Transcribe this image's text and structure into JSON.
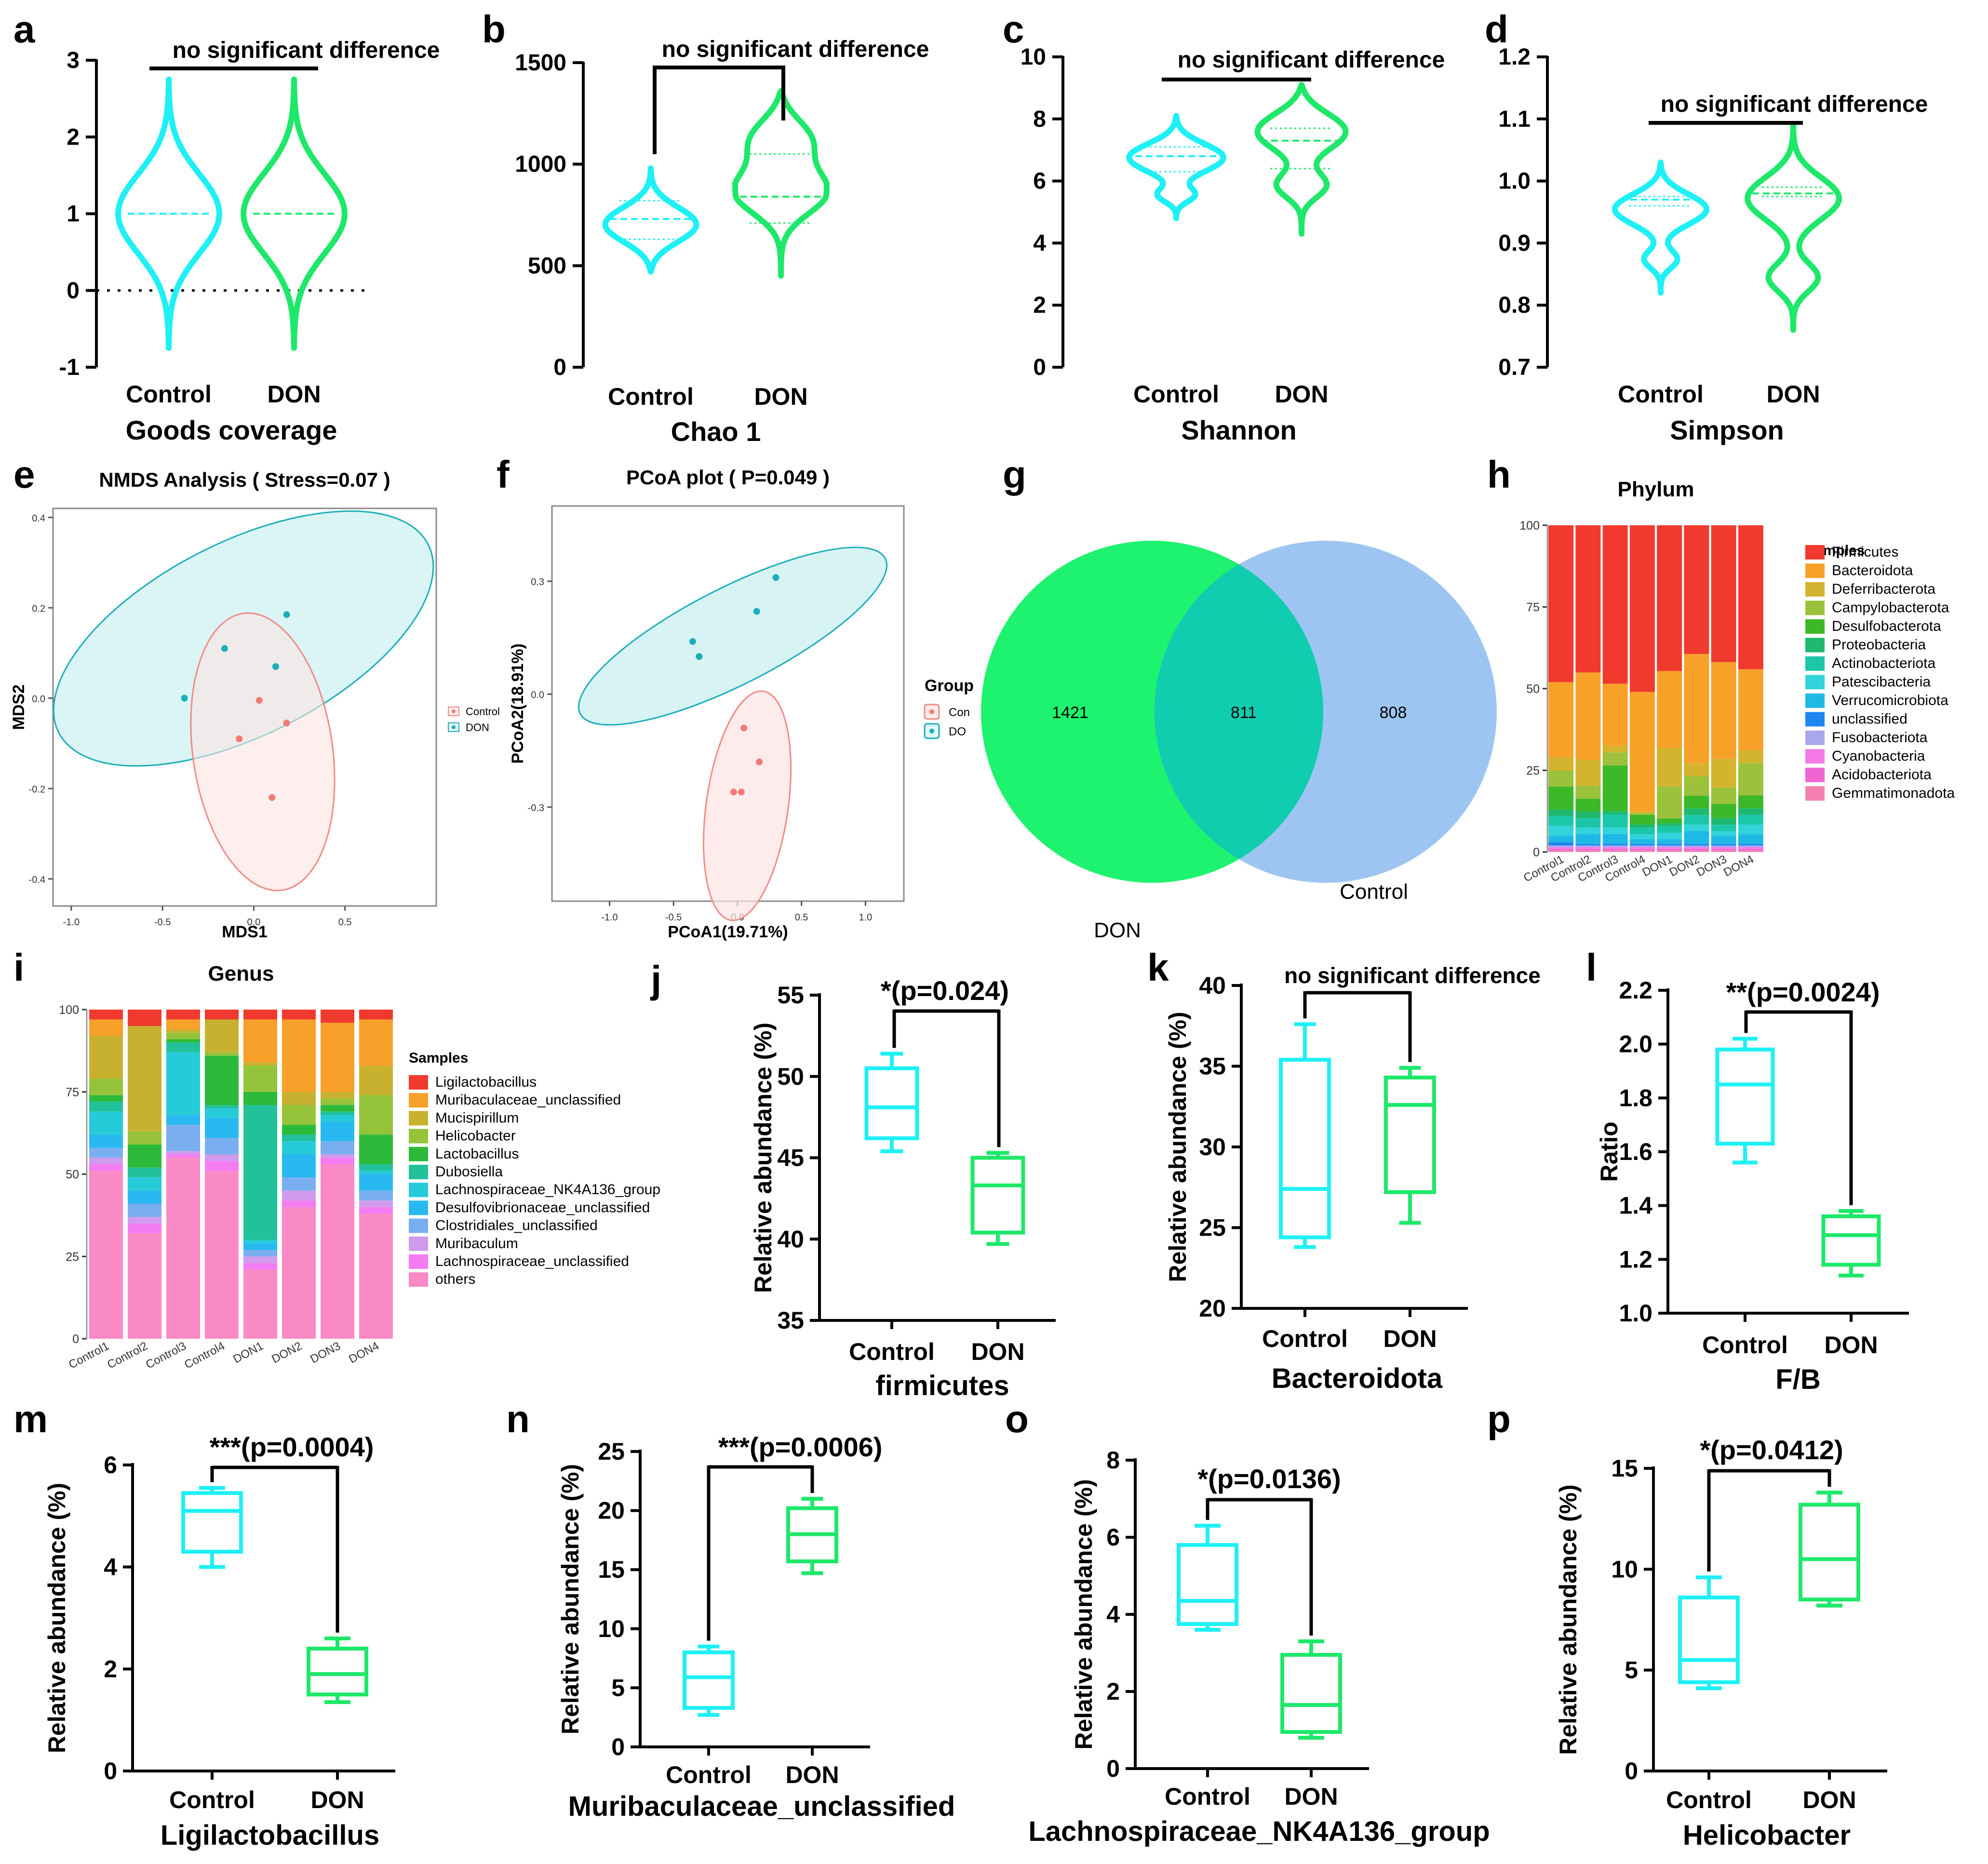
{
  "colors": {
    "control": "#1EF0F5",
    "don": "#1EE86A",
    "control_pale": "#DDF6F7",
    "don_pale": "#FCE6E4",
    "venn_don": "#1DF36E",
    "venn_control": "#9EC5F2",
    "venn_overlap": "#10CDB0"
  },
  "chart_data": [
    {
      "id": "a",
      "type": "violin",
      "title": "Goods coverage",
      "categories": [
        "Control",
        "DON"
      ],
      "ylim": [
        -1,
        3
      ],
      "yticks": [
        "3",
        "2",
        "1",
        "0",
        "-1"
      ],
      "range": [
        [
          -0.75,
          2.75
        ],
        [
          -0.75,
          2.75
        ]
      ],
      "medians": [
        1.0,
        1.0
      ],
      "zero_line": true,
      "annotation": "no significant difference"
    },
    {
      "id": "b",
      "type": "violin",
      "title": "Chao 1",
      "categories": [
        "Control",
        "DON"
      ],
      "ylim": [
        0,
        1500
      ],
      "yticks": [
        "1500",
        "1000",
        "500",
        "0"
      ],
      "range": [
        [
          470,
          980
        ],
        [
          450,
          1360
        ]
      ],
      "medians": [
        730,
        840
      ],
      "quartiles": [
        [
          630,
          820
        ],
        [
          710,
          1050
        ]
      ],
      "annotation": "no significant difference"
    },
    {
      "id": "c",
      "type": "violin",
      "title": "Shannon",
      "categories": [
        "Control",
        "DON"
      ],
      "ylim": [
        0,
        10
      ],
      "yticks": [
        "10",
        "8",
        "6",
        "4",
        "2",
        "0"
      ],
      "range": [
        [
          4.8,
          8.1
        ],
        [
          4.3,
          9.1
        ]
      ],
      "medians": [
        6.8,
        7.3
      ],
      "quartiles": [
        [
          6.3,
          7.1
        ],
        [
          6.4,
          7.7
        ]
      ],
      "annotation": "no significant difference"
    },
    {
      "id": "d",
      "type": "violin",
      "title": "Simpson",
      "categories": [
        "Control",
        "DON"
      ],
      "ylim": [
        0.7,
        1.2
      ],
      "yticks": [
        "1.2",
        "1.1",
        "1.0",
        "0.9",
        "0.8",
        "0.7"
      ],
      "range": [
        [
          0.82,
          1.03
        ],
        [
          0.76,
          1.09
        ]
      ],
      "medians": [
        0.97,
        0.98
      ],
      "quartiles": [
        [
          0.96,
          0.975
        ],
        [
          0.975,
          0.99
        ]
      ],
      "annotation": "no significant difference"
    },
    {
      "id": "e",
      "type": "scatter",
      "title": "NMDS Analysis ( Stress=0.07 )",
      "xlabel": "MDS1",
      "ylabel": "MDS2",
      "xlim": [
        -1.1,
        1.0
      ],
      "ylim": [
        -0.46,
        0.42
      ],
      "xticks": [
        -1.0,
        -0.5,
        0.0,
        0.5
      ],
      "yticks": [
        -0.4,
        -0.2,
        0.0,
        0.2,
        0.4
      ],
      "legend": [
        "Control",
        "DON"
      ],
      "series": [
        {
          "name": "Control",
          "points": [
            [
              0.03,
              -0.005
            ],
            [
              0.18,
              -0.055
            ],
            [
              -0.08,
              -0.09
            ],
            [
              0.1,
              -0.22
            ]
          ]
        },
        {
          "name": "DON",
          "points": [
            [
              -0.38,
              0.0
            ],
            [
              -0.16,
              0.11
            ],
            [
              0.12,
              0.07
            ],
            [
              0.18,
              0.185
            ]
          ]
        }
      ]
    },
    {
      "id": "f",
      "type": "scatter",
      "title": "PCoA plot ( P=0.049 )",
      "xlabel": "PCoA1(19.71%)",
      "ylabel": "PCoA2(18.91%)",
      "xlim": [
        -1.45,
        1.3
      ],
      "ylim": [
        -0.55,
        0.5
      ],
      "xticks": [
        -1.0,
        -0.5,
        0.0,
        0.5,
        1.0
      ],
      "yticks": [
        -0.3,
        0.0,
        0.3
      ],
      "legend_title": "Group",
      "legend": [
        "Con",
        "DO"
      ],
      "series": [
        {
          "name": "Control",
          "points": [
            [
              0.05,
              -0.09
            ],
            [
              0.17,
              -0.18
            ],
            [
              -0.03,
              -0.26
            ],
            [
              0.03,
              -0.26
            ]
          ]
        },
        {
          "name": "DON",
          "points": [
            [
              0.3,
              0.31
            ],
            [
              0.15,
              0.22
            ],
            [
              -0.35,
              0.14
            ],
            [
              -0.3,
              0.1
            ]
          ]
        }
      ]
    },
    {
      "id": "g",
      "type": "venn",
      "sets": [
        "DON",
        "Control"
      ],
      "only_don": "1421",
      "shared": "811",
      "only_control": "808"
    },
    {
      "id": "h",
      "type": "stacked_bar",
      "title": "Phylum",
      "legend_title": "Samples",
      "categories": [
        "Control1",
        "Control2",
        "Control3",
        "Control4",
        "DON1",
        "DON2",
        "DON3",
        "DON4"
      ],
      "yticks": [
        "100",
        "75",
        "50",
        "25",
        "0"
      ],
      "series": [
        {
          "name": "Firmicutes",
          "color": "#F03A2E",
          "values": [
            48,
            45.5,
            48.5,
            51.5,
            45.5,
            40,
            42.5,
            44.5
          ]
        },
        {
          "name": "Bacteroidota",
          "color": "#F7A129",
          "values": [
            23,
            27,
            19,
            37,
            24,
            34,
            30,
            25
          ]
        },
        {
          "name": "Deferribacterota",
          "color": "#D4B42E",
          "values": [
            4,
            8,
            2,
            0.5,
            12,
            4,
            9,
            4
          ]
        },
        {
          "name": "Campylobacterota",
          "color": "#9CC13A",
          "values": [
            5,
            4,
            4,
            0.5,
            10,
            6,
            5,
            10
          ]
        },
        {
          "name": "Desulfobacterota",
          "color": "#3DB829",
          "values": [
            7,
            4,
            14,
            3,
            1.5,
            4,
            4.5,
            4
          ]
        },
        {
          "name": "Proteobacteria",
          "color": "#1EB96F",
          "values": [
            2,
            2,
            1,
            1,
            1,
            2,
            2,
            2
          ]
        },
        {
          "name": "Actinobacteriota",
          "color": "#1CC7A9",
          "values": [
            3,
            3,
            4,
            2,
            2,
            3,
            2,
            3
          ]
        },
        {
          "name": "Patescibacteria",
          "color": "#32D4DB",
          "values": [
            3,
            2,
            2,
            1.5,
            2,
            2,
            1.5,
            3
          ]
        },
        {
          "name": "Verrucomicrobiota",
          "color": "#20B9E6",
          "values": [
            2,
            3,
            3,
            1.5,
            1.5,
            4,
            2.5,
            3
          ]
        },
        {
          "name": "unclassified",
          "color": "#1E86F0",
          "values": [
            1,
            0.5,
            0.5,
            0.5,
            0.5,
            0.5,
            0.5,
            0.5
          ]
        },
        {
          "name": "Fusobacteriota",
          "color": "#A9A7EE",
          "values": [
            0.5,
            0.5,
            0.5,
            0.5,
            0.5,
            0.5,
            0.5,
            0.5
          ]
        },
        {
          "name": "Cyanobacteria",
          "color": "#F27BE8",
          "values": [
            0.5,
            0.5,
            0.5,
            0.5,
            0.5,
            0.5,
            0.5,
            0.5
          ]
        },
        {
          "name": "Acidobacteriota",
          "color": "#F064D2",
          "values": [
            0.5,
            0.5,
            0.5,
            0.5,
            0.5,
            0.5,
            0.5,
            0.5
          ]
        },
        {
          "name": "Gemmatimonadota",
          "color": "#F581B0",
          "values": [
            0.5,
            0.5,
            0.5,
            0.5,
            0.5,
            0.5,
            0.5,
            0.5
          ]
        }
      ]
    },
    {
      "id": "i",
      "type": "stacked_bar",
      "title": "Genus",
      "legend_title": "Samples",
      "categories": [
        "Control1",
        "Control2",
        "Control3",
        "Control4",
        "DON1",
        "DON2",
        "DON3",
        "DON4"
      ],
      "yticks": [
        "100",
        "75",
        "50",
        "25",
        "0"
      ],
      "series": [
        {
          "name": "others",
          "color": "#F98AC6",
          "values": [
            51,
            32,
            55,
            51,
            21,
            40,
            53,
            38
          ]
        },
        {
          "name": "Lachnospiraceae_unclassified",
          "color": "#F47CF2",
          "values": [
            2,
            3,
            1,
            3,
            2,
            2,
            2,
            2
          ]
        },
        {
          "name": "Muribaculum",
          "color": "#D09BEC",
          "values": [
            2,
            2,
            1,
            2,
            2,
            3,
            1,
            2
          ]
        },
        {
          "name": "Clostridiales_unclassified",
          "color": "#79AFF0",
          "values": [
            3,
            4,
            8,
            5,
            2,
            4,
            4,
            3
          ]
        },
        {
          "name": "Desulfovibrionaceae_unclassified",
          "color": "#28B9F0",
          "values": [
            4,
            4,
            3,
            6,
            2,
            7,
            6,
            5
          ]
        },
        {
          "name": "Lachnospiraceae_NK4A136_group",
          "color": "#26CBDA",
          "values": [
            7,
            4,
            19,
            3,
            1,
            4,
            2,
            1
          ]
        },
        {
          "name": "Dubosiella",
          "color": "#21C19C",
          "values": [
            3,
            3,
            3,
            1,
            41,
            2,
            1,
            2
          ]
        },
        {
          "name": "Lactobacillus",
          "color": "#2DBA3A",
          "values": [
            2,
            7,
            1,
            15,
            4,
            3,
            2,
            9
          ]
        },
        {
          "name": "Helicobacter",
          "color": "#95C33A",
          "values": [
            5,
            4,
            2,
            1,
            8,
            6,
            2,
            12
          ]
        },
        {
          "name": "Mucispirillum",
          "color": "#C8B12E",
          "values": [
            13,
            32,
            1,
            10,
            1,
            4,
            2,
            9
          ]
        },
        {
          "name": "Muribaculaceae_unclassified",
          "color": "#F7A02A",
          "values": [
            5,
            0,
            3,
            0,
            13,
            22,
            21,
            14
          ]
        },
        {
          "name": "Ligilactobacillus",
          "color": "#F03A2E",
          "values": [
            3,
            5,
            3,
            3,
            3,
            3,
            4,
            3
          ]
        }
      ]
    },
    {
      "id": "j",
      "type": "box",
      "title": "firmicutes",
      "ylabel": "Relative abundance (%)",
      "categories": [
        "Control",
        "DON"
      ],
      "ylim": [
        35,
        55
      ],
      "yticks": [
        "55",
        "50",
        "45",
        "40",
        "35"
      ],
      "boxes": [
        [
          45.4,
          46.2,
          48.1,
          50.5,
          51.4
        ],
        [
          39.7,
          40.4,
          43.3,
          45.0,
          45.3
        ]
      ],
      "annotation": "*(p=0.024)"
    },
    {
      "id": "k",
      "type": "box",
      "title": "Bacteroidota",
      "ylabel": "Relative abundance (%)",
      "categories": [
        "Control",
        "DON"
      ],
      "ylim": [
        20,
        40
      ],
      "yticks": [
        "40",
        "35",
        "30",
        "25",
        "20"
      ],
      "boxes": [
        [
          23.8,
          24.4,
          27.4,
          35.4,
          37.6
        ],
        [
          25.3,
          27.2,
          32.6,
          34.3,
          34.9
        ]
      ],
      "annotation": "no significant difference"
    },
    {
      "id": "l",
      "type": "box",
      "title": "F/B",
      "ylabel": "Ratio",
      "categories": [
        "Control",
        "DON"
      ],
      "ylim": [
        1.0,
        2.2
      ],
      "yticks": [
        "2.2",
        "2.0",
        "1.8",
        "1.6",
        "1.4",
        "1.2",
        "1.0"
      ],
      "boxes": [
        [
          1.56,
          1.63,
          1.85,
          1.98,
          2.02
        ],
        [
          1.14,
          1.18,
          1.29,
          1.36,
          1.38
        ]
      ],
      "annotation": "**(p=0.0024)"
    },
    {
      "id": "m",
      "type": "box",
      "title": "Ligilactobacillus",
      "ylabel": "Relative abundance (%)",
      "categories": [
        "Control",
        "DON"
      ],
      "ylim": [
        0,
        6
      ],
      "yticks": [
        "6",
        "4",
        "2",
        "0"
      ],
      "boxes": [
        [
          4.0,
          4.3,
          5.1,
          5.45,
          5.55
        ],
        [
          1.35,
          1.5,
          1.9,
          2.4,
          2.6
        ]
      ],
      "annotation": "***(p=0.0004)"
    },
    {
      "id": "n",
      "type": "box",
      "title": "Muribaculaceae_unclassified",
      "ylabel": "Relative abundance (%)",
      "categories": [
        "Control",
        "DON"
      ],
      "ylim": [
        0,
        25
      ],
      "yticks": [
        "25",
        "20",
        "15",
        "10",
        "5",
        "0"
      ],
      "boxes": [
        [
          2.7,
          3.3,
          5.9,
          8.0,
          8.5
        ],
        [
          14.7,
          15.7,
          18.0,
          20.2,
          21.0
        ]
      ],
      "annotation": "***(p=0.0006)"
    },
    {
      "id": "o",
      "type": "box",
      "title": "Lachnospiraceae_NK4A136_group",
      "ylabel": "Relative abundance (%)",
      "categories": [
        "Control",
        "DON"
      ],
      "ylim": [
        0,
        8
      ],
      "yticks": [
        "8",
        "6",
        "4",
        "2",
        "0"
      ],
      "boxes": [
        [
          3.6,
          3.75,
          4.35,
          5.8,
          6.3
        ],
        [
          0.8,
          0.95,
          1.65,
          2.95,
          3.3
        ]
      ],
      "annotation": "*(p=0.0136)"
    },
    {
      "id": "p",
      "type": "box",
      "title": "Helicobacter",
      "ylabel": "Relative abundance (%)",
      "categories": [
        "Control",
        "DON"
      ],
      "ylim": [
        0,
        15
      ],
      "yticks": [
        "15",
        "10",
        "5",
        "0"
      ],
      "boxes": [
        [
          4.1,
          4.4,
          5.5,
          8.6,
          9.6
        ],
        [
          8.2,
          8.5,
          10.5,
          13.2,
          13.8
        ]
      ],
      "annotation": "*(p=0.0412)"
    }
  ]
}
